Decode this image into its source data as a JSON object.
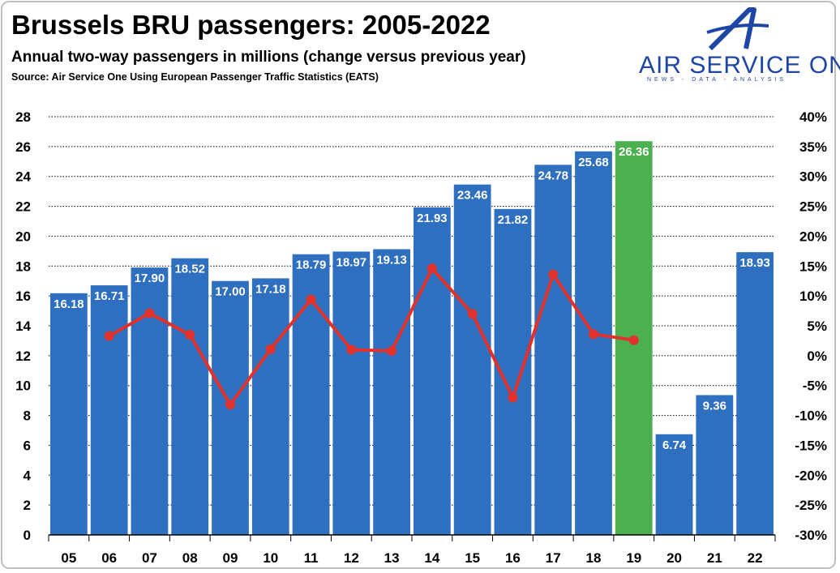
{
  "header": {
    "title": "Brussels BRU passengers: 2005-2022",
    "subtitle": "Annual two-way passengers in millions (change versus previous year)",
    "source": "Source: Air Service One Using European Passenger Traffic Statistics (EATS)"
  },
  "logo": {
    "name": "AIR SERVICE ONE",
    "tagline": "NEWS - DATA - ANALYSIS",
    "icon": "stylized-letter-a-icon",
    "color": "#1f46a6"
  },
  "chart_data": {
    "type": "bar",
    "categories": [
      "05",
      "06",
      "07",
      "08",
      "09",
      "10",
      "11",
      "12",
      "13",
      "14",
      "15",
      "16",
      "17",
      "18",
      "19",
      "20",
      "21",
      "22"
    ],
    "series": [
      {
        "values": [
          16.18,
          16.71,
          17.9,
          18.52,
          17.0,
          17.18,
          18.79,
          18.97,
          19.13,
          21.93,
          23.46,
          21.82,
          24.78,
          25.68,
          26.36,
          6.74,
          9.36,
          18.93
        ],
        "data_labels": [
          "16.18",
          "16.71",
          "17.90",
          "18.52",
          "17.00",
          "17.18",
          "18.79",
          "18.97",
          "19.13",
          "21.93",
          "23.46",
          "21.82",
          "24.78",
          "25.68",
          "26.36",
          "6.74",
          "9.36",
          "18.93"
        ],
        "color": "#2f6fbf",
        "highlight": {
          "category": "19",
          "color": "#4caf50"
        },
        "axis": "left"
      },
      {
        "type": "line",
        "axis": "right",
        "color": "#e0312a",
        "values": [
          null,
          3.3,
          7.1,
          3.5,
          -8.2,
          1.1,
          9.4,
          1.0,
          0.8,
          14.6,
          7.0,
          -7.0,
          13.6,
          3.6,
          2.6,
          null,
          null,
          null
        ]
      }
    ],
    "ylim": [
      0,
      28
    ],
    "yticks": [
      "0",
      "2",
      "4",
      "6",
      "8",
      "10",
      "12",
      "14",
      "16",
      "18",
      "20",
      "22",
      "24",
      "26",
      "28"
    ],
    "y2lim": [
      -30,
      40
    ],
    "y2ticks": [
      "-30%",
      "-25%",
      "-20%",
      "-15%",
      "-10%",
      "-5%",
      "0%",
      "5%",
      "10%",
      "15%",
      "20%",
      "25%",
      "30%",
      "35%",
      "40%"
    ],
    "grid": "horizontal dotted",
    "legend": "none"
  }
}
